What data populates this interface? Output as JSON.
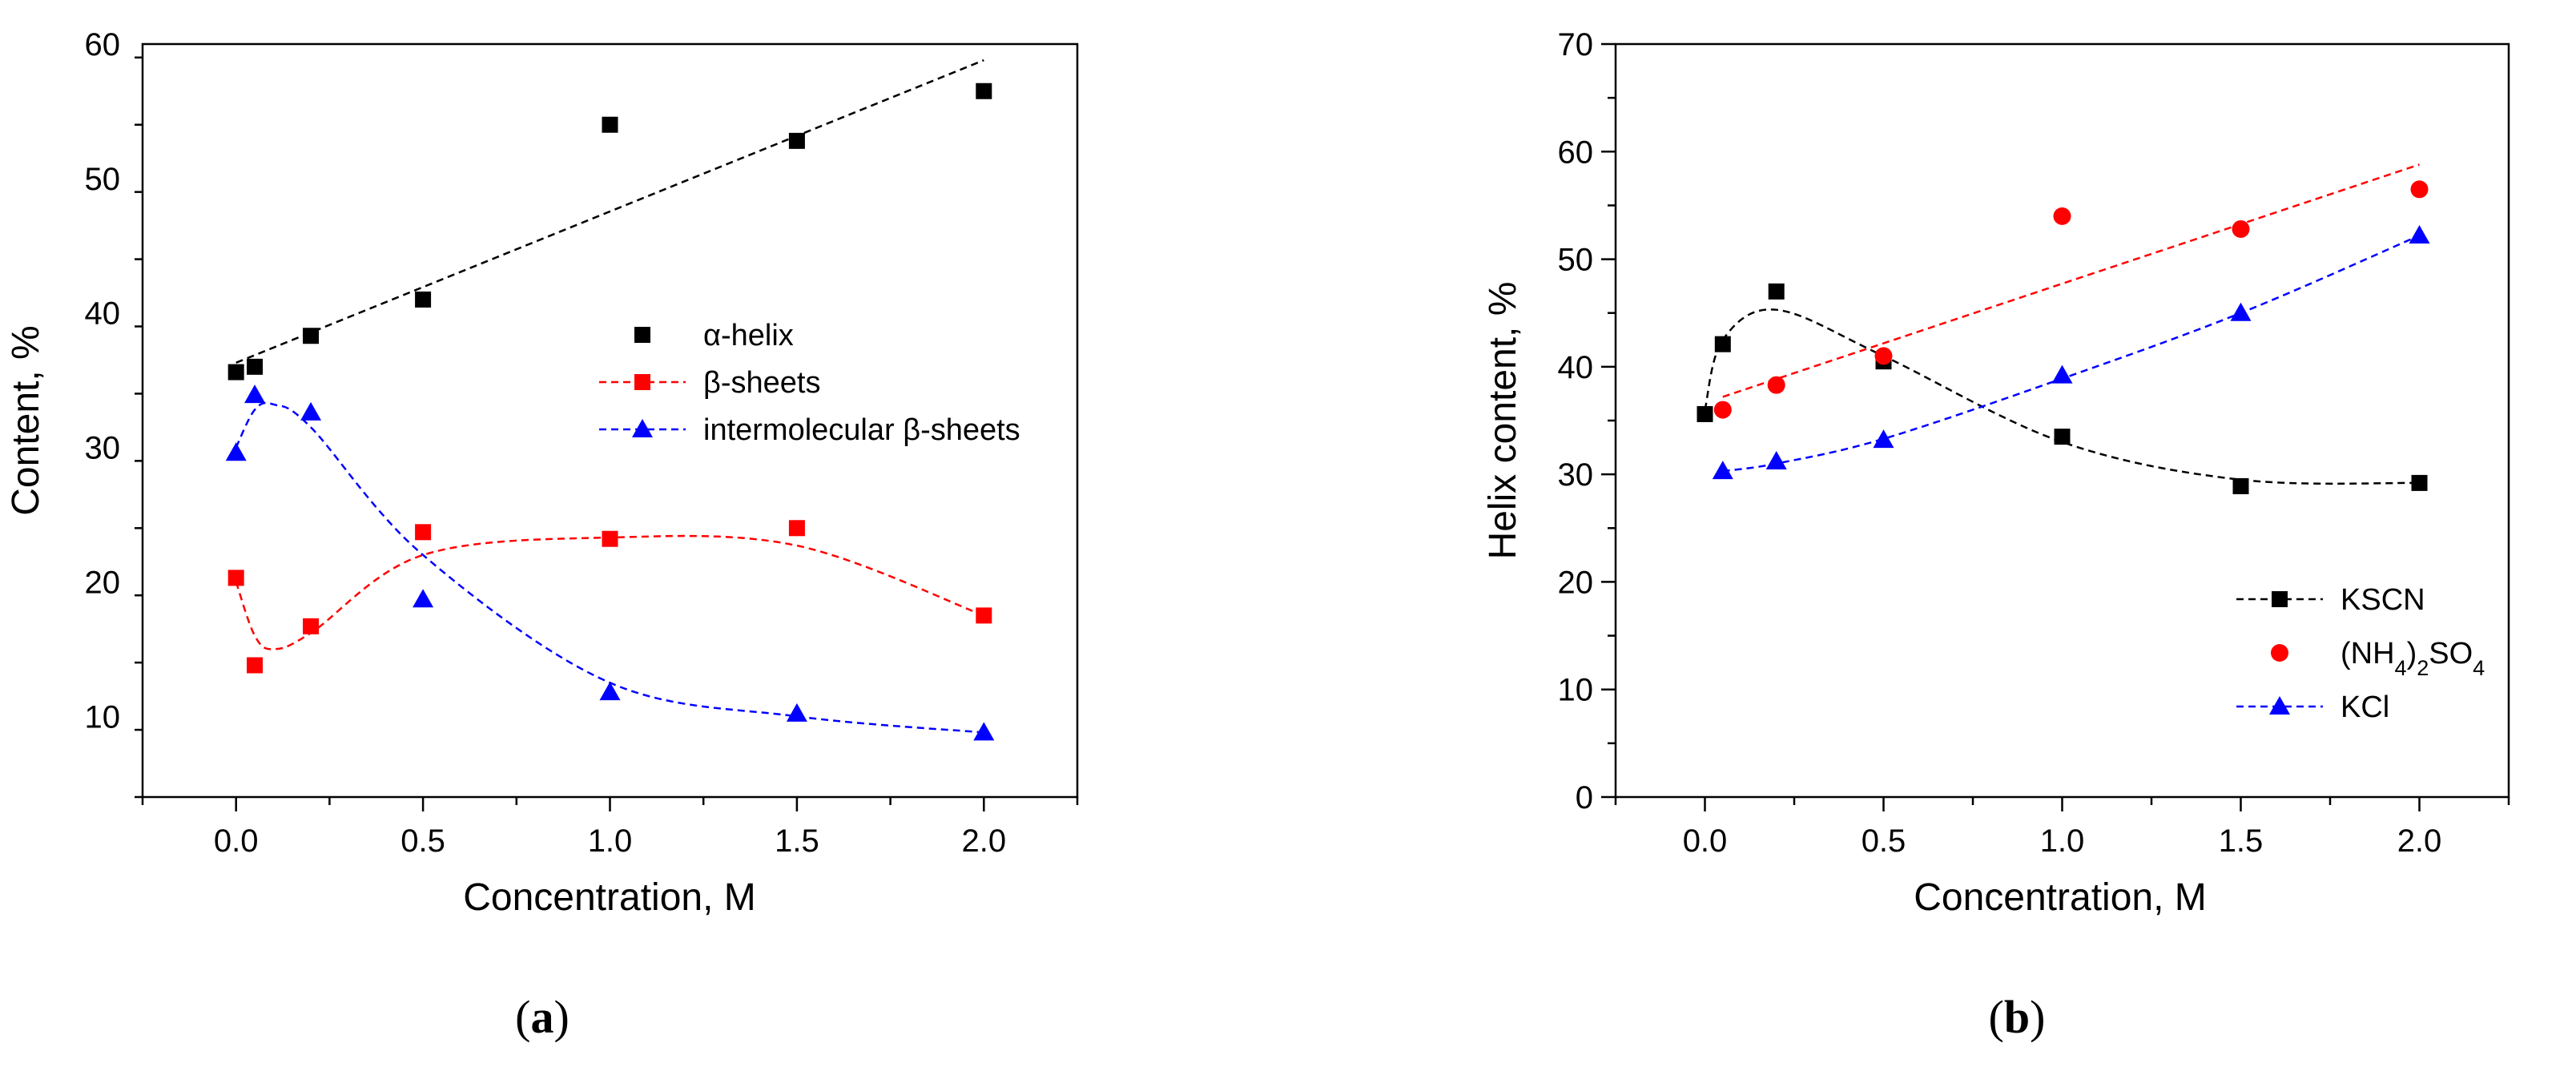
{
  "colors": {
    "black": "#000000",
    "red": "#ff0000",
    "blue": "#0000ff"
  },
  "chart_data": [
    {
      "panel": "a",
      "panel_label": {
        "open": "(",
        "letter": "a",
        "close": ")"
      },
      "type": "scatter",
      "xlabel": "Concentration, M",
      "ylabel": "Content, %",
      "xlim": [
        -0.25,
        2.25
      ],
      "ylim": [
        4,
        60
      ],
      "xticks": [
        0.0,
        0.5,
        1.0,
        1.5,
        2.0
      ],
      "xtick_labels": [
        "0.0",
        "0.5",
        "1.0",
        "1.5",
        "2.0"
      ],
      "yticks": [
        10,
        20,
        30,
        40,
        50,
        60
      ],
      "ytick_labels": [
        "10",
        "20",
        "30",
        "40",
        "50",
        "60"
      ],
      "grid": false,
      "legend_position": "center-right",
      "series": [
        {
          "name": "α-helix",
          "color": "#000000",
          "marker": "square",
          "legend_line": false,
          "x": [
            0.0,
            0.05,
            0.2,
            0.5,
            1.0,
            1.5,
            2.0
          ],
          "y": [
            35.6,
            36.0,
            38.3,
            41.0,
            54.0,
            52.8,
            56.5
          ],
          "fit": {
            "kind": "linear",
            "x": [
              0.0,
              2.0
            ],
            "y": [
              36.3,
              58.8
            ]
          }
        },
        {
          "name": "β-sheets",
          "color": "#ff0000",
          "marker": "square",
          "legend_line": true,
          "x": [
            0.0,
            0.05,
            0.2,
            0.5,
            1.0,
            1.5,
            2.0
          ],
          "y": [
            20.3,
            13.8,
            16.7,
            23.7,
            23.2,
            24.0,
            17.5
          ],
          "fit": {
            "kind": "smooth",
            "x": [
              0.0,
              0.05,
              0.1,
              0.2,
              0.5,
              1.0,
              1.5,
              2.0
            ],
            "y": [
              20.0,
              16.0,
              15.0,
              16.2,
              22.0,
              23.3,
              22.7,
              17.5
            ]
          }
        },
        {
          "name": "intermolecular β-sheets",
          "color": "#0000ff",
          "marker": "triangle",
          "legend_line": true,
          "x": [
            0.0,
            0.05,
            0.2,
            0.5,
            1.0,
            1.5,
            2.0
          ],
          "y": [
            29.6,
            33.9,
            32.6,
            18.7,
            11.8,
            10.2,
            8.8
          ],
          "fit": {
            "kind": "smooth",
            "x": [
              0.0,
              0.05,
              0.1,
              0.2,
              0.5,
              1.0,
              1.5,
              2.0
            ],
            "y": [
              30.0,
              32.8,
              33.2,
              31.5,
              22.0,
              12.5,
              10.0,
              8.8
            ]
          }
        }
      ]
    },
    {
      "panel": "b",
      "panel_label": {
        "open": "(",
        "letter": "b",
        "close": ")"
      },
      "type": "scatter",
      "xlabel": "Concentration, M",
      "ylabel": "Helix content, %",
      "xlim": [
        -0.25,
        2.25
      ],
      "ylim": [
        0,
        70
      ],
      "xticks": [
        0.0,
        0.5,
        1.0,
        1.5,
        2.0
      ],
      "xtick_labels": [
        "0.0",
        "0.5",
        "1.0",
        "1.5",
        "2.0"
      ],
      "yticks": [
        0,
        10,
        20,
        30,
        40,
        50,
        60,
        70
      ],
      "ytick_labels": [
        "0",
        "10",
        "20",
        "30",
        "40",
        "50",
        "60",
        "70"
      ],
      "grid": false,
      "legend_position": "bottom-right",
      "series": [
        {
          "name": "KSCN",
          "color": "#000000",
          "marker": "square",
          "legend_line": true,
          "x": [
            0.0,
            0.05,
            0.2,
            0.5,
            1.0,
            1.5,
            2.0
          ],
          "y": [
            35.6,
            42.1,
            47.0,
            40.5,
            33.5,
            28.9,
            29.2
          ],
          "fit": {
            "kind": "smooth",
            "x": [
              0.0,
              0.05,
              0.2,
              0.5,
              1.0,
              1.5,
              2.0
            ],
            "y": [
              36.0,
              42.5,
              45.3,
              41.0,
              33.0,
              29.5,
              29.2
            ]
          }
        },
        {
          "name": "(NH4)2SO4",
          "label_parts": [
            "(NH",
            "4",
            ")",
            "2",
            "SO",
            "4"
          ],
          "color": "#ff0000",
          "marker": "circle",
          "legend_line": false,
          "x": [
            0.05,
            0.2,
            0.5,
            1.0,
            1.5,
            2.0
          ],
          "y": [
            36.0,
            38.3,
            41.0,
            54.0,
            52.8,
            56.5
          ],
          "fit": {
            "kind": "linear",
            "x": [
              0.05,
              2.0
            ],
            "y": [
              37.2,
              58.8
            ]
          }
        },
        {
          "name": "KCl",
          "color": "#0000ff",
          "marker": "triangle",
          "legend_line": true,
          "x": [
            0.05,
            0.2,
            0.5,
            1.0,
            1.5,
            2.0
          ],
          "y": [
            30.3,
            31.2,
            33.2,
            39.2,
            45.0,
            52.2
          ],
          "fit": {
            "kind": "smooth",
            "x": [
              0.05,
              0.2,
              0.5,
              1.0,
              1.5,
              2.0
            ],
            "y": [
              30.3,
              31.0,
              33.3,
              38.9,
              45.0,
              52.2
            ]
          }
        }
      ]
    }
  ]
}
